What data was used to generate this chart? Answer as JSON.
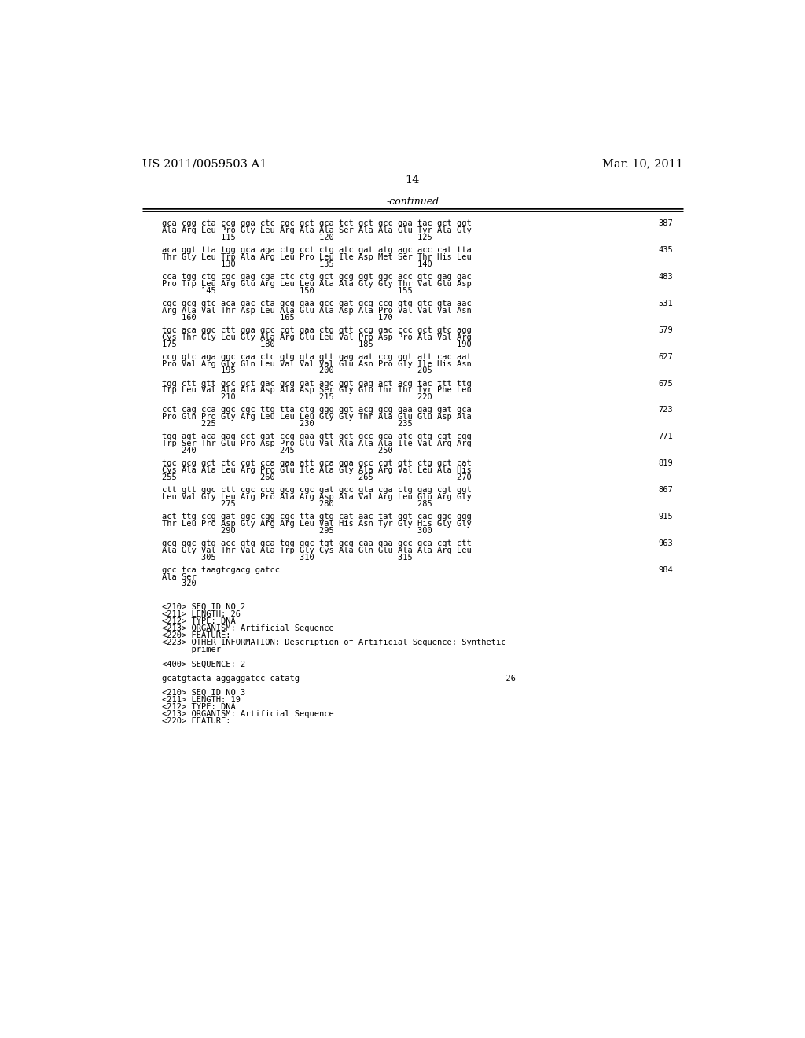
{
  "header_left": "US 2011/0059503 A1",
  "header_right": "Mar. 10, 2011",
  "page_number": "14",
  "continued_label": "-continued",
  "background_color": "#ffffff",
  "text_color": "#000000",
  "font_size_header": 10.5,
  "font_size_page_num": 10.5,
  "mono_size": 7.5,
  "content_blocks": [
    {
      "dna": "gca cgg cta ccg gga ctc cgc gct gca tct gct gcc gaa tac gct ggt",
      "aa": "Ala Arg Leu Pro Gly Leu Arg Ala Ala Ser Ala Ala Glu Tyr Ala Gly",
      "nums": "            115                 120                 125",
      "num_right": "387"
    },
    {
      "dna": "aca ggt tta tgg gca aga ctg cct ctg atc gat atg agc acc cat tta",
      "aa": "Thr Gly Leu Trp Ala Arg Leu Pro Leu Ile Asp Met Ser Thr His Leu",
      "nums": "            130                 135                 140",
      "num_right": "435"
    },
    {
      "dna": "cca tgg ctg cgc gag cga ctc ctg gct gcg ggt ggc acc gtc gag gac",
      "aa": "Pro Trp Leu Arg Glu Arg Leu Leu Ala Ala Gly Gly Thr Val Glu Asp",
      "nums": "        145                 150                 155",
      "num_right": "483"
    },
    {
      "dna": "cgc gcg gtc aca gac cta gcg gaa gcc gat gcg ccg gtg gtc gta aac",
      "aa": "Arg Ala Val Thr Asp Leu Ala Glu Ala Asp Ala Pro Val Val Val Asn",
      "nums": "    160                 165                 170",
      "num_right": "531"
    },
    {
      "dna": "tgc aca ggc ctt gga gcc cgt gaa ctg gtt ccg gac ccc gct gtc agg",
      "aa": "Cys Thr Gly Leu Gly Ala Arg Glu Leu Val Pro Asp Pro Ala Val Arg",
      "nums": "175                 180                 185                 190",
      "num_right": "579"
    },
    {
      "dna": "ccg gtc aga ggc caa ctc gtg gta gtt gag aat ccg ggt att cac aat",
      "aa": "Pro Val Arg Gly Gln Leu Val Val Val Glu Asn Pro Gly Ile His Asn",
      "nums": "            195                 200                 205",
      "num_right": "627"
    },
    {
      "dna": "tgg ctt gtt gcc gct gac gcg gat agc ggt gag act acg tac ttt ttg",
      "aa": "Trp Leu Val Ala Ala Asp Ala Asp Ser Gly Glu Thr Thr Tyr Phe Leu",
      "nums": "            210                 215                 220",
      "num_right": "675"
    },
    {
      "dna": "cct cag cca ggc cgc ttg tta ctg ggg ggt acg gcg gaa gag gat gca",
      "aa": "Pro Gln Pro Gly Arg Leu Leu Leu Gly Gly Thr Ala Glu Glu Asp Ala",
      "nums": "        225                 230                 235",
      "num_right": "723"
    },
    {
      "dna": "tgg agt aca gag cct gat ccg gaa gtt gct gcc gca atc gtg cgt cgg",
      "aa": "Trp Ser Thr Glu Pro Asp Pro Glu Val Ala Ala Ala Ile Val Arg Arg",
      "nums": "    240                 245                 250",
      "num_right": "771"
    },
    {
      "dna": "tgc gcg gct ctc cgt cca gaa att gca gga gcc cgt gtt ctg gct cat",
      "aa": "Cys Ala Ala Leu Arg Pro Glu Ile Ala Gly Ala Arg Val Leu Ala His",
      "nums": "255                 260                 265                 270",
      "num_right": "819"
    },
    {
      "dna": "ctt gtt ggc ctt cgc ccg gcg cgc gat gcc gta cga ctg gag cgt ggt",
      "aa": "Leu Val Gly Leu Arg Pro Ala Arg Asp Ala Val Arg Leu Glu Arg Gly",
      "nums": "            275                 280                 285",
      "num_right": "867"
    },
    {
      "dna": "act ttg ccg gat ggc cgg cgc tta gtg cat aac tat ggt cac ggc ggg",
      "aa": "Thr Leu Pro Asp Gly Arg Arg Leu Val His Asn Tyr Gly His Gly Gly",
      "nums": "            290                 295                 300",
      "num_right": "915"
    },
    {
      "dna": "gcg ggc gtg acc gtg gca tgg ggc tgt gcg caa gaa gcc gca cgt ctt",
      "aa": "Ala Gly Val Thr Val Ala Trp Gly Cys Ala Gln Glu Ala Ala Arg Leu",
      "nums": "        305                 310                 315",
      "num_right": "963"
    },
    {
      "dna": "gcc tca taagtcgacg gatcc",
      "aa": "Ala Ser",
      "nums": "    320",
      "num_right": "984"
    }
  ],
  "seq_blocks": [
    "<210> SEQ ID NO 2",
    "<211> LENGTH: 26",
    "<212> TYPE: DNA",
    "<213> ORGANISM: Artificial Sequence",
    "<220> FEATURE:",
    "<223> OTHER INFORMATION: Description of Artificial Sequence: Synthetic",
    "      primer",
    "",
    "<400> SEQUENCE: 2",
    "",
    "gcatgtacta aggaggatcc catatg                                          26",
    "",
    "<210> SEQ ID NO 3",
    "<211> LENGTH: 19",
    "<212> TYPE: DNA",
    "<213> ORGANISM: Artificial Sequence",
    "<220> FEATURE:"
  ]
}
